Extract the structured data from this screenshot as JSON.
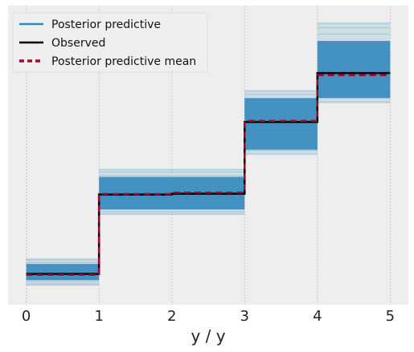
{
  "chart_data": {
    "type": "line",
    "xlabel": "y / y",
    "ylabel": "",
    "xlim": [
      -0.25,
      5.25
    ],
    "ylim": [
      -0.05,
      1.05
    ],
    "x_ticks": [
      "0",
      "1",
      "2",
      "3",
      "4",
      "5"
    ],
    "grid": true,
    "legend_position": "top-left",
    "colors": {
      "background": "#eeeeee",
      "grid": "#bcbcbc",
      "posterior_predictive": "#348abd",
      "observed": "#000000",
      "mean": "#a60628"
    },
    "steps": [
      {
        "x0": 0,
        "x1": 1,
        "band_low": 0.04,
        "band_high": 0.1,
        "faint_high": 0.12
      },
      {
        "x0": 1,
        "x1": 2,
        "band_low": 0.3,
        "band_high": 0.42,
        "faint_high": 0.45
      },
      {
        "x0": 2,
        "x1": 3,
        "band_low": 0.3,
        "band_high": 0.42,
        "faint_high": 0.45
      },
      {
        "x0": 3,
        "x1": 4,
        "band_low": 0.52,
        "band_high": 0.71,
        "faint_high": 0.74
      },
      {
        "x0": 4,
        "x1": 5,
        "band_low": 0.71,
        "band_high": 0.92,
        "faint_high": 0.99
      }
    ],
    "series": [
      {
        "name": "Posterior predictive",
        "style": "band"
      },
      {
        "name": "Observed",
        "x": [
          0,
          1,
          2,
          3,
          4,
          5
        ],
        "y": [
          0.063,
          0.355,
          0.358,
          0.622,
          0.802,
          0.802
        ]
      },
      {
        "name": "Posterior predictive mean",
        "x": [
          0,
          1,
          2,
          3,
          4,
          5
        ],
        "y": [
          0.06,
          0.357,
          0.362,
          0.626,
          0.794,
          0.794
        ]
      }
    ]
  }
}
